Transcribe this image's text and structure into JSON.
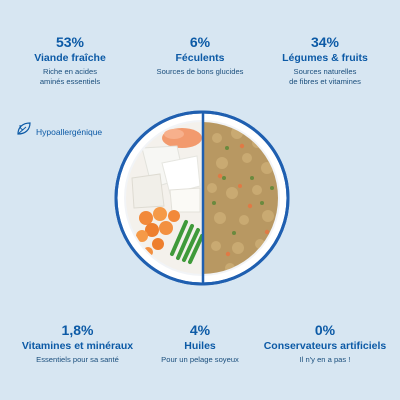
{
  "stats_top": [
    {
      "pct": "53%",
      "title": "Viande fraîche",
      "sub1": "Riche en acides",
      "sub2": "aminés essentiels"
    },
    {
      "pct": "6%",
      "title": "Féculents",
      "sub1": "Sources de bons glucides",
      "sub2": ""
    },
    {
      "pct": "34%",
      "title": "Légumes & fruits",
      "sub1": "Sources naturelles",
      "sub2": "de fibres et vitamines"
    }
  ],
  "stats_bottom": [
    {
      "pct": "1,8%",
      "title": "Vitamines et minéraux",
      "sub1": "Essentiels pour sa santé",
      "sub2": ""
    },
    {
      "pct": "4%",
      "title": "Huiles",
      "sub1": "Pour un pelage soyeux",
      "sub2": ""
    },
    {
      "pct": "0%",
      "title": "Conservateurs artificiels",
      "sub1": "Il n'y en a pas !",
      "sub2": ""
    }
  ],
  "badge": {
    "label": "Hypoallergénique",
    "icon": "leaf-icon"
  },
  "colors": {
    "background": "#d7e6f2",
    "primary": "#0c5aa6",
    "plate_ring": "#1f5fb0"
  }
}
